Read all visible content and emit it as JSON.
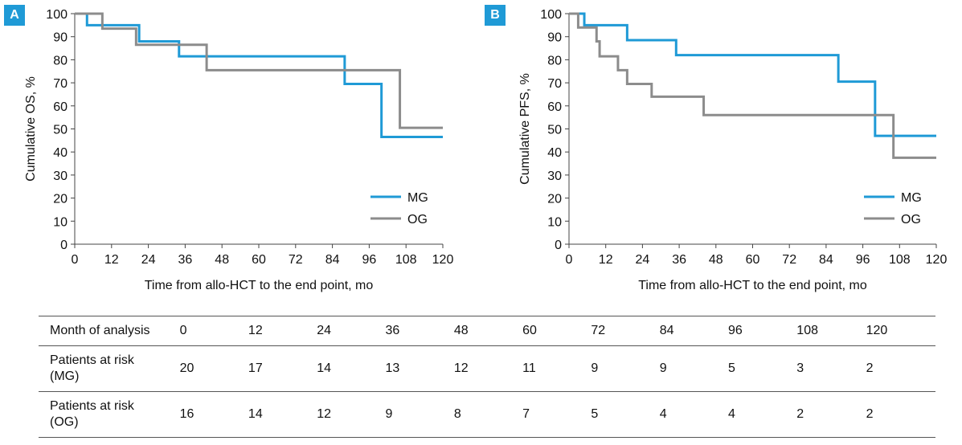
{
  "panels": [
    {
      "badge": "A",
      "ylabel": "Cumulative OS, %",
      "xlabel": "Time from allo-HCT to the end point, mo"
    },
    {
      "badge": "B",
      "ylabel": "Cumulative PFS, %",
      "xlabel": "Time from allo-HCT to the end point, mo"
    }
  ],
  "colors": {
    "MG": "#1f9ad6",
    "OG": "#8c8c8c"
  },
  "chart_data": [
    {
      "type": "line",
      "step": true,
      "ylabel": "Cumulative OS, %",
      "xlabel": "Time from allo-HCT to the end point, mo",
      "xlim": [
        0,
        120
      ],
      "ylim": [
        0,
        100
      ],
      "xticks": [
        "0",
        "12",
        "24",
        "36",
        "48",
        "60",
        "72",
        "84",
        "96",
        "108",
        "120"
      ],
      "yticks": [
        "0",
        "10",
        "20",
        "30",
        "40",
        "50",
        "60",
        "70",
        "80",
        "90",
        "100"
      ],
      "legend_position": "bottom-right",
      "series": [
        {
          "name": "MG",
          "x": [
            0,
            4,
            21,
            34,
            88,
            100,
            120
          ],
          "y": [
            100,
            95,
            88,
            81.5,
            69.5,
            46.5,
            46.5
          ]
        },
        {
          "name": "OG",
          "x": [
            0,
            9,
            20,
            43,
            106,
            120
          ],
          "y": [
            100,
            93.5,
            86.5,
            75.5,
            50.5,
            50.5
          ]
        }
      ]
    },
    {
      "type": "line",
      "step": true,
      "ylabel": "Cumulative PFS, %",
      "xlabel": "Time from allo-HCT to the end point, mo",
      "xlim": [
        0,
        120
      ],
      "ylim": [
        0,
        100
      ],
      "xticks": [
        "0",
        "12",
        "24",
        "36",
        "48",
        "60",
        "72",
        "84",
        "96",
        "108",
        "120"
      ],
      "yticks": [
        "0",
        "10",
        "20",
        "30",
        "40",
        "50",
        "60",
        "70",
        "80",
        "90",
        "100"
      ],
      "legend_position": "bottom-right",
      "series": [
        {
          "name": "MG",
          "x": [
            0,
            5,
            19,
            35,
            88,
            100,
            120
          ],
          "y": [
            100,
            95,
            88.5,
            82,
            70.5,
            47,
            47
          ]
        },
        {
          "name": "OG",
          "x": [
            0,
            3,
            9,
            10,
            16,
            19,
            27,
            44,
            106,
            120
          ],
          "y": [
            100,
            94,
            88,
            81.5,
            75.5,
            69.5,
            64,
            56,
            37.5,
            37.5
          ]
        }
      ]
    }
  ],
  "table": {
    "header_label": "Month of analysis",
    "months": [
      "0",
      "12",
      "24",
      "36",
      "48",
      "60",
      "72",
      "84",
      "96",
      "108",
      "120"
    ],
    "rows": [
      {
        "label_line1": "Patients at risk",
        "label_line2": "(MG)",
        "values": [
          "20",
          "17",
          "14",
          "13",
          "12",
          "11",
          "9",
          "9",
          "5",
          "3",
          "2"
        ]
      },
      {
        "label_line1": "Patients at risk",
        "label_line2": "(OG)",
        "values": [
          "16",
          "14",
          "12",
          "9",
          "8",
          "7",
          "5",
          "4",
          "4",
          "2",
          "2"
        ]
      }
    ]
  }
}
